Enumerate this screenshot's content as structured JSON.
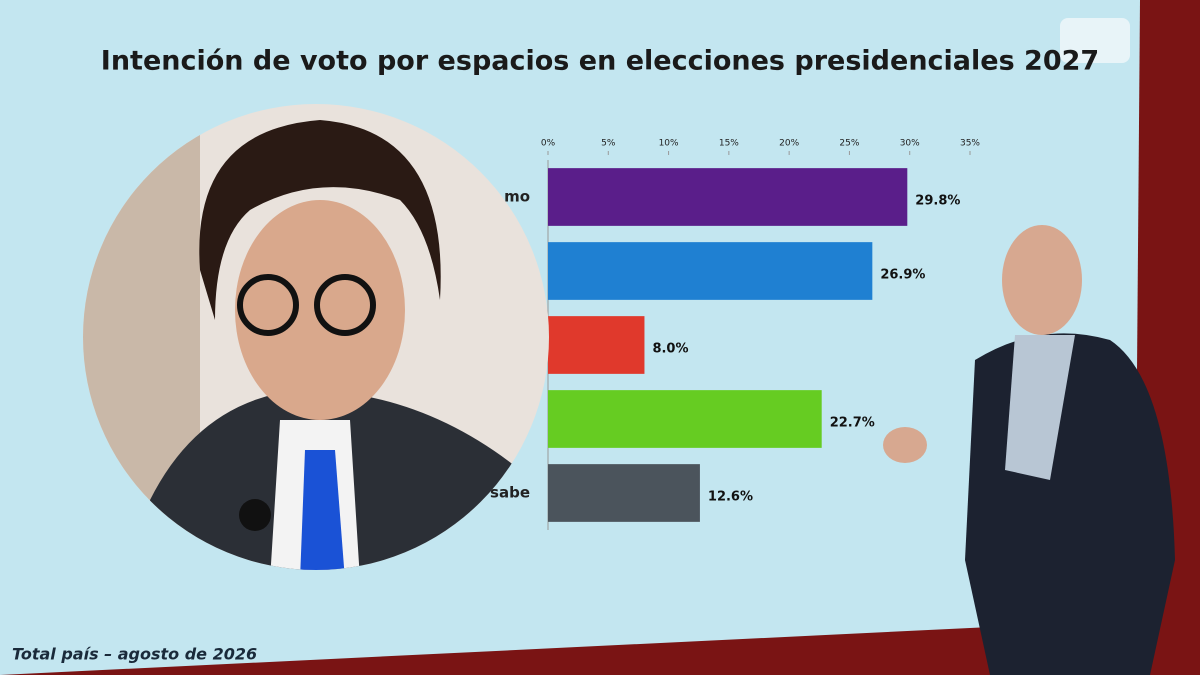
{
  "chart_data": {
    "type": "bar",
    "orientation": "horizontal",
    "title": "Intención de voto por espacios en elecciones presidenciales 2027",
    "footer": "Total país – agosto de 2026",
    "categories": [
      "mo",
      null,
      null,
      null,
      "o sabe"
    ],
    "values": [
      29.8,
      26.9,
      8.0,
      22.7,
      12.6
    ],
    "value_labels": [
      "29.8%",
      "26.9%",
      "8.0%",
      "22.7%",
      "12.6%"
    ],
    "colors": [
      "#5a1e8a",
      "#1f80d2",
      "#e0392c",
      "#66cc22",
      "#4b545c"
    ],
    "xlim": [
      0,
      35
    ],
    "xticks": [
      {
        "value": 0,
        "label": "0%"
      },
      {
        "value": 5,
        "label": "5%"
      },
      {
        "value": 10,
        "label": "10%"
      },
      {
        "value": 15,
        "label": "15%"
      },
      {
        "value": 20,
        "label": "20%"
      },
      {
        "value": 25,
        "label": "25%"
      },
      {
        "value": 30,
        "label": "30%"
      },
      {
        "value": 35,
        "label": "35%"
      }
    ],
    "grid": false
  }
}
